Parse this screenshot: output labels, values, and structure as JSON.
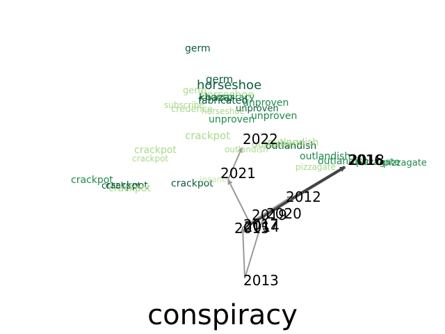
{
  "title": "conspiracy",
  "colors": {
    "arrow": "#999999",
    "arrow_dark": "#444444",
    "green_dark": "#0b5d3b",
    "green_mid": "#1e8a4a",
    "green_light": "#a9d98b",
    "green_pale": "#c7e6b0",
    "year_text": "#000000"
  },
  "years": [
    {
      "label": "2013"
    },
    {
      "label": "2014"
    },
    {
      "label": "2015"
    },
    {
      "label": "2017"
    },
    {
      "label": "2019"
    },
    {
      "label": "2020"
    },
    {
      "label": "2012"
    },
    {
      "label": "2016"
    },
    {
      "label": "2018"
    },
    {
      "label": "2021"
    },
    {
      "label": "2022"
    }
  ],
  "words": [
    {
      "text": "germ",
      "tone": "green_dark"
    },
    {
      "text": "germ",
      "tone": "green_dark"
    },
    {
      "text": "horseshoe",
      "tone": "green_dark"
    },
    {
      "text": "germ",
      "tone": "green_light"
    },
    {
      "text": "horseshoe",
      "tone": "green_light"
    },
    {
      "text": "khazar",
      "tone": "green_dark"
    },
    {
      "text": "conspiracy",
      "tone": "green_mid"
    },
    {
      "text": "fabricated",
      "tone": "green_dark"
    },
    {
      "text": "subscribe",
      "tone": "green_light"
    },
    {
      "text": "unproven",
      "tone": "green_mid"
    },
    {
      "text": "credence",
      "tone": "green_light"
    },
    {
      "text": "unproven",
      "tone": "green_dark"
    },
    {
      "text": "horseshoe",
      "tone": "green_light"
    },
    {
      "text": "unproven",
      "tone": "green_mid"
    },
    {
      "text": "unproven",
      "tone": "green_mid"
    },
    {
      "text": "crackpot",
      "tone": "green_light"
    },
    {
      "text": "crackpot",
      "tone": "green_light"
    },
    {
      "text": "crackpot",
      "tone": "green_light"
    },
    {
      "text": "outlandish",
      "tone": "green_light"
    },
    {
      "text": "outlandish",
      "tone": "green_light"
    },
    {
      "text": "outlandish",
      "tone": "green_dark"
    },
    {
      "text": "outlandish",
      "tone": "green_light"
    },
    {
      "text": "outlandish",
      "tone": "green_mid"
    },
    {
      "text": "outlandish",
      "tone": "green_mid"
    },
    {
      "text": "pizzagate",
      "tone": "green_mid"
    },
    {
      "text": "pizzagate",
      "tone": "green_mid"
    },
    {
      "text": "pizzagate",
      "tone": "green_light"
    },
    {
      "text": "crackpot",
      "tone": "green_mid"
    },
    {
      "text": "crackpot",
      "tone": "green_dark"
    },
    {
      "text": "crackpot",
      "tone": "green_dark"
    },
    {
      "text": "crackpot",
      "tone": "green_light"
    },
    {
      "text": "crackpot",
      "tone": "green_dark"
    },
    {
      "text": "insane",
      "tone": "green_pale"
    }
  ],
  "arrows": [
    {
      "from": "2013",
      "to": "2015",
      "tone": "arrow"
    },
    {
      "from": "2013",
      "to": "2019",
      "tone": "arrow"
    },
    {
      "from": "2014",
      "to": "2016",
      "tone": "arrow_dark"
    },
    {
      "from": "2017",
      "to": "2018",
      "tone": "arrow_dark"
    },
    {
      "from": "2015",
      "to": "2012",
      "tone": "arrow"
    },
    {
      "from": "2014",
      "to": "2021",
      "tone": "arrow"
    },
    {
      "from": "2021",
      "to": "2022",
      "tone": "arrow"
    }
  ]
}
